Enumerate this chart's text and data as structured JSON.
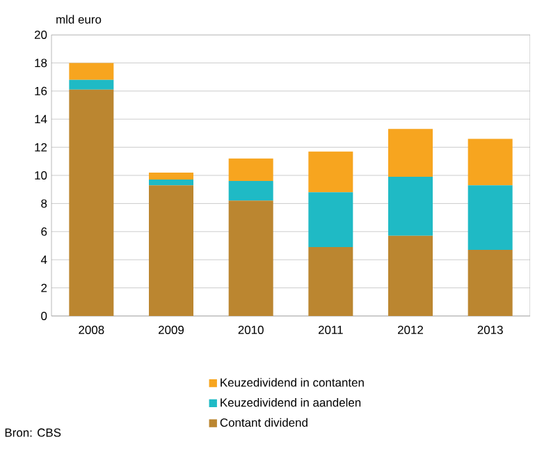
{
  "chart_data": {
    "type": "bar",
    "stacked": true,
    "ylabel": "mld euro",
    "categories": [
      "2008",
      "2009",
      "2010",
      "2011",
      "2012",
      "2013"
    ],
    "series": [
      {
        "name": "Contant dividend",
        "color": "#bb8630",
        "values": [
          16.1,
          9.3,
          8.2,
          4.9,
          5.7,
          4.7
        ]
      },
      {
        "name": "Keuzedividend in aandelen",
        "color": "#1fbac5",
        "values": [
          0.7,
          0.4,
          1.4,
          3.9,
          4.2,
          4.6
        ]
      },
      {
        "name": "Keuzedividend in contanten",
        "color": "#f7a51f",
        "values": [
          1.2,
          0.5,
          1.6,
          2.9,
          3.4,
          3.3
        ]
      }
    ],
    "ylim": [
      0,
      20
    ],
    "yticks": [
      0,
      2,
      4,
      6,
      8,
      10,
      12,
      14,
      16,
      18,
      20
    ],
    "grid": "y",
    "legend": "bottom",
    "annotations": [
      "Bron: CBS"
    ]
  }
}
